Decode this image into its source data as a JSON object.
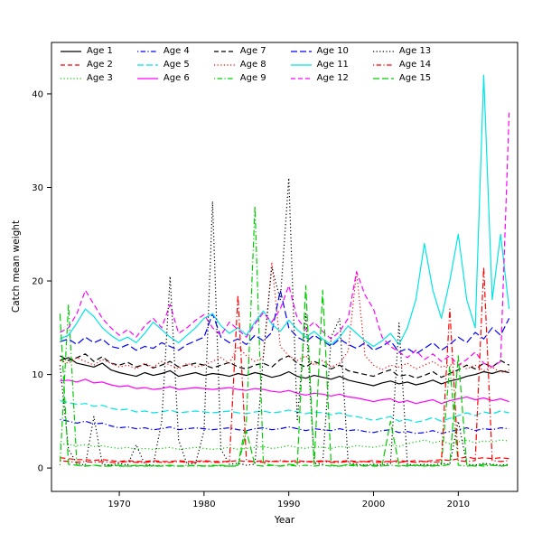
{
  "figure": {
    "background": "#ffffff",
    "x_ticks": [
      1970,
      1980,
      1990,
      2000,
      2010
    ],
    "y_ticks": [
      0,
      10,
      20,
      30,
      40
    ]
  },
  "chart_data": {
    "type": "line",
    "title": "",
    "xlabel": "Year",
    "ylabel": "Catch mean weight",
    "xlim": [
      1963,
      2016
    ],
    "ylim": [
      0,
      42
    ],
    "grid": false,
    "legend": {
      "position": "top",
      "columns": 5,
      "order": "column-major"
    },
    "x": [
      1963,
      1964,
      1965,
      1966,
      1967,
      1968,
      1969,
      1970,
      1971,
      1972,
      1973,
      1974,
      1975,
      1976,
      1977,
      1978,
      1979,
      1980,
      1981,
      1982,
      1983,
      1984,
      1985,
      1986,
      1987,
      1988,
      1989,
      1990,
      1991,
      1992,
      1993,
      1994,
      1995,
      1996,
      1997,
      1998,
      1999,
      2000,
      2001,
      2002,
      2003,
      2004,
      2005,
      2006,
      2007,
      2008,
      2009,
      2010,
      2011,
      2012,
      2013,
      2014,
      2015,
      2016
    ],
    "series": [
      {
        "name": "Age 1",
        "color": "#000000",
        "style": "solid",
        "values": [
          11.5,
          11.8,
          11.2,
          11.0,
          10.8,
          11.2,
          10.5,
          10.2,
          10.0,
          9.8,
          10.2,
          9.9,
          10.1,
          10.4,
          9.8,
          10.0,
          10.2,
          9.9,
          10.1,
          10.0,
          9.8,
          10.1,
          9.9,
          10.2,
          10.0,
          9.7,
          9.9,
          10.3,
          9.8,
          9.6,
          9.9,
          9.7,
          9.5,
          9.8,
          9.4,
          9.2,
          9.0,
          8.8,
          9.1,
          9.3,
          9.0,
          9.2,
          8.9,
          9.1,
          9.4,
          9.0,
          9.3,
          9.5,
          9.8,
          10.0,
          10.3,
          10.1,
          10.4,
          10.2
        ]
      },
      {
        "name": "Age 2",
        "color": "#ff0000",
        "style": "dashed",
        "values": [
          1.1,
          1.0,
          0.9,
          0.9,
          0.8,
          0.9,
          0.8,
          0.7,
          0.8,
          0.7,
          0.7,
          0.8,
          0.7,
          0.7,
          0.8,
          0.7,
          0.7,
          0.8,
          0.7,
          0.7,
          0.7,
          0.8,
          0.7,
          0.7,
          0.8,
          0.7,
          0.7,
          0.7,
          0.8,
          0.7,
          0.7,
          0.8,
          0.7,
          0.7,
          0.8,
          0.7,
          0.7,
          0.8,
          0.7,
          0.7,
          0.8,
          0.7,
          0.8,
          0.7,
          0.8,
          0.9,
          0.8,
          1.0,
          1.2,
          1.0,
          1.1,
          1.0,
          1.1,
          1.0
        ]
      },
      {
        "name": "Age 3",
        "color": "#00cd00",
        "style": "dotted",
        "values": [
          2.6,
          2.5,
          2.4,
          2.5,
          2.3,
          2.4,
          2.2,
          2.1,
          2.2,
          2.0,
          2.1,
          2.0,
          2.1,
          2.2,
          2.0,
          2.1,
          2.2,
          2.1,
          2.0,
          2.1,
          2.2,
          2.0,
          2.1,
          2.2,
          2.3,
          2.1,
          2.2,
          2.4,
          2.2,
          2.1,
          2.3,
          2.2,
          2.1,
          2.3,
          2.2,
          2.4,
          2.3,
          2.2,
          2.4,
          2.5,
          2.3,
          2.6,
          2.8,
          3.0,
          2.7,
          2.9,
          2.6,
          2.8,
          3.0,
          2.7,
          2.9,
          2.8,
          3.0,
          2.9
        ]
      },
      {
        "name": "Age 4",
        "color": "#0000ff",
        "style": "dashdot",
        "values": [
          5.2,
          5.0,
          4.8,
          5.0,
          4.7,
          4.8,
          4.5,
          4.3,
          4.4,
          4.2,
          4.3,
          4.1,
          4.2,
          4.4,
          4.1,
          4.2,
          4.3,
          4.2,
          4.1,
          4.2,
          4.3,
          4.1,
          4.0,
          4.2,
          4.3,
          4.1,
          4.2,
          4.4,
          4.2,
          4.0,
          4.2,
          4.1,
          4.0,
          4.2,
          4.0,
          4.1,
          3.9,
          3.8,
          4.0,
          4.1,
          3.8,
          3.9,
          3.7,
          3.8,
          4.0,
          3.7,
          3.9,
          4.1,
          4.3,
          4.0,
          4.2,
          4.1,
          4.3,
          4.2
        ]
      },
      {
        "name": "Age 5",
        "color": "#00e5e5",
        "style": "longdash",
        "values": [
          7.2,
          7.0,
          6.8,
          6.9,
          6.6,
          6.7,
          6.4,
          6.2,
          6.3,
          6.0,
          6.1,
          5.9,
          6.0,
          6.2,
          5.9,
          6.0,
          6.1,
          6.0,
          5.9,
          6.0,
          6.1,
          5.9,
          5.8,
          6.0,
          6.1,
          5.9,
          6.0,
          6.2,
          6.0,
          5.8,
          6.0,
          5.9,
          5.7,
          5.9,
          5.6,
          5.5,
          5.3,
          5.1,
          5.3,
          5.5,
          5.0,
          5.2,
          4.9,
          5.1,
          5.4,
          5.0,
          5.3,
          5.6,
          5.9,
          5.6,
          6.0,
          5.8,
          6.1,
          5.9
        ]
      },
      {
        "name": "Age 6",
        "color": "#ff00ff",
        "style": "solid",
        "values": [
          9.3,
          9.4,
          9.2,
          9.5,
          9.1,
          9.2,
          8.9,
          8.7,
          8.8,
          8.5,
          8.6,
          8.4,
          8.5,
          8.7,
          8.4,
          8.5,
          8.6,
          8.5,
          8.4,
          8.5,
          8.6,
          8.4,
          8.3,
          8.5,
          8.4,
          8.2,
          8.1,
          8.3,
          8.0,
          7.8,
          8.0,
          7.9,
          7.7,
          7.9,
          7.6,
          7.5,
          7.3,
          7.1,
          7.3,
          7.4,
          7.0,
          7.2,
          6.9,
          7.1,
          7.3,
          6.9,
          7.2,
          7.4,
          7.6,
          7.3,
          7.5,
          7.2,
          7.4,
          7.1
        ]
      },
      {
        "name": "Age 7",
        "color": "#000000",
        "style": "dashed",
        "values": [
          12.0,
          11.5,
          11.8,
          12.2,
          11.4,
          11.9,
          11.2,
          11.0,
          11.3,
          10.8,
          11.1,
          10.7,
          11.0,
          11.4,
          10.8,
          11.0,
          11.2,
          11.0,
          10.7,
          11.0,
          11.3,
          10.8,
          10.6,
          11.0,
          11.2,
          10.8,
          11.6,
          12.0,
          11.2,
          10.8,
          11.4,
          11.0,
          10.6,
          11.0,
          10.4,
          10.2,
          10.0,
          9.8,
          10.2,
          10.5,
          9.8,
          10.0,
          9.6,
          9.9,
          10.3,
          9.7,
          10.1,
          10.5,
          11.0,
          10.6,
          11.2,
          10.8,
          11.5,
          11.0
        ]
      },
      {
        "name": "Age 8",
        "color": "#ff0000",
        "style": "dotted",
        "values": [
          11.5,
          11.2,
          11.8,
          11.4,
          11.0,
          11.6,
          11.2,
          10.8,
          11.0,
          10.6,
          11.2,
          10.8,
          11.4,
          11.0,
          10.6,
          11.2,
          10.8,
          11.0,
          11.4,
          11.8,
          11.2,
          13.0,
          12.0,
          11.4,
          11.8,
          22.0,
          13.0,
          12.0,
          11.5,
          12.0,
          11.0,
          11.5,
          10.8,
          11.2,
          12.5,
          21.0,
          12.0,
          11.0,
          10.5,
          11.0,
          10.8,
          11.2,
          10.6,
          11.0,
          11.4,
          10.8,
          11.0,
          11.2,
          10.6,
          11.0,
          10.4,
          10.8,
          10.2,
          10.5
        ]
      },
      {
        "name": "Age 9",
        "color": "#00cd00",
        "style": "dashdot",
        "values": [
          0.3,
          17.5,
          0.3,
          0.2,
          0.3,
          0.2,
          0.3,
          0.2,
          0.2,
          0.3,
          0.2,
          0.2,
          0.3,
          0.2,
          0.2,
          0.3,
          0.2,
          0.2,
          0.3,
          0.2,
          0.2,
          0.3,
          5.0,
          28.0,
          0.5,
          0.3,
          0.2,
          0.3,
          0.2,
          0.3,
          0.2,
          0.3,
          0.2,
          0.2,
          0.3,
          0.2,
          0.3,
          0.2,
          0.2,
          0.3,
          0.2,
          0.3,
          0.2,
          0.3,
          0.2,
          0.3,
          11.0,
          0.3,
          0.2,
          0.3,
          0.2,
          0.3,
          0.2,
          0.3
        ]
      },
      {
        "name": "Age 10",
        "color": "#0000ff",
        "style": "longdash",
        "values": [
          13.5,
          13.8,
          13.2,
          14.0,
          13.4,
          13.8,
          13.0,
          12.8,
          13.2,
          12.6,
          13.0,
          12.8,
          13.4,
          13.0,
          12.6,
          13.2,
          13.6,
          14.0,
          16.5,
          14.0,
          13.4,
          13.8,
          13.2,
          14.2,
          13.6,
          14.5,
          19.0,
          15.0,
          14.0,
          13.5,
          14.2,
          13.6,
          13.0,
          13.8,
          13.2,
          12.8,
          13.4,
          12.6,
          13.0,
          13.6,
          12.4,
          12.8,
          12.2,
          12.8,
          13.4,
          12.6,
          13.2,
          14.0,
          13.4,
          14.5,
          13.8,
          15.0,
          14.2,
          16.0
        ]
      },
      {
        "name": "Age 11",
        "color": "#00e5e5",
        "style": "solid",
        "values": [
          13.8,
          14.2,
          15.5,
          17.0,
          16.2,
          15.0,
          14.2,
          13.6,
          14.0,
          13.4,
          14.4,
          15.6,
          14.8,
          14.0,
          13.4,
          14.2,
          15.0,
          16.0,
          16.5,
          15.2,
          14.4,
          15.0,
          14.2,
          15.6,
          16.8,
          15.4,
          14.6,
          15.8,
          14.8,
          14.0,
          14.6,
          13.8,
          13.2,
          14.0,
          15.2,
          14.4,
          13.6,
          13.0,
          13.6,
          14.4,
          13.2,
          15.0,
          18.0,
          24.0,
          19.0,
          16.0,
          20.0,
          25.0,
          18.0,
          15.0,
          42.0,
          18.0,
          25.0,
          17.0
        ]
      },
      {
        "name": "Age 12",
        "color": "#ff00ff",
        "style": "dashed",
        "values": [
          14.5,
          15.0,
          16.5,
          19.0,
          17.5,
          16.0,
          15.0,
          14.2,
          14.8,
          14.0,
          15.2,
          16.0,
          15.0,
          17.5,
          14.4,
          15.0,
          15.8,
          16.4,
          15.0,
          14.2,
          15.6,
          14.8,
          14.0,
          15.4,
          16.6,
          15.6,
          17.0,
          19.5,
          16.0,
          14.8,
          15.6,
          14.6,
          13.8,
          14.6,
          16.0,
          21.0,
          18.5,
          17.0,
          14.0,
          13.0,
          12.4,
          11.8,
          12.6,
          11.6,
          12.2,
          11.4,
          12.0,
          11.0,
          11.6,
          12.4,
          11.2,
          10.8,
          11.4,
          38.0
        ]
      },
      {
        "name": "Age 13",
        "color": "#000000",
        "style": "dotted",
        "values": [
          11.0,
          2.0,
          0.5,
          0.3,
          5.5,
          0.4,
          0.3,
          0.5,
          0.3,
          2.5,
          0.4,
          0.3,
          5.0,
          20.5,
          3.0,
          0.4,
          0.5,
          4.0,
          28.5,
          2.0,
          0.4,
          0.5,
          0.3,
          0.4,
          12.0,
          21.5,
          18.0,
          31.0,
          5.0,
          16.5,
          0.5,
          0.4,
          14.0,
          16.0,
          0.5,
          0.4,
          0.3,
          0.4,
          0.3,
          0.5,
          15.5,
          0.4,
          0.3,
          0.4,
          0.3,
          0.5,
          0.4,
          5.0,
          0.4,
          0.3,
          0.5,
          0.4,
          0.3,
          0.4
        ]
      },
      {
        "name": "Age 14",
        "color": "#ff0000",
        "style": "dashdot",
        "values": [
          0.8,
          0.7,
          0.6,
          0.7,
          0.6,
          0.7,
          0.6,
          0.6,
          0.7,
          0.6,
          0.6,
          0.7,
          0.6,
          0.6,
          0.7,
          0.6,
          0.6,
          0.7,
          0.6,
          0.6,
          0.7,
          18.5,
          0.8,
          0.7,
          0.6,
          0.7,
          0.8,
          0.7,
          0.6,
          0.7,
          0.6,
          0.7,
          0.6,
          0.6,
          0.7,
          0.6,
          0.7,
          0.6,
          0.6,
          0.7,
          0.6,
          0.7,
          0.6,
          0.7,
          0.6,
          0.7,
          17.0,
          0.8,
          0.7,
          0.8,
          21.5,
          0.8,
          0.7,
          0.8
        ]
      },
      {
        "name": "Age 15",
        "color": "#00cd00",
        "style": "longdash",
        "values": [
          16.5,
          0.4,
          0.3,
          0.2,
          0.3,
          0.2,
          0.2,
          0.3,
          0.2,
          0.2,
          0.3,
          0.2,
          0.2,
          0.3,
          0.2,
          0.2,
          0.3,
          0.2,
          0.2,
          0.3,
          0.2,
          0.2,
          4.0,
          0.3,
          0.2,
          0.3,
          0.2,
          0.4,
          0.3,
          19.5,
          0.4,
          19.0,
          0.3,
          0.2,
          0.4,
          0.3,
          0.2,
          0.3,
          0.2,
          5.0,
          0.3,
          0.2,
          0.3,
          0.2,
          0.3,
          0.2,
          0.4,
          12.0,
          0.3,
          0.2,
          0.4,
          0.3,
          0.2,
          0.3
        ]
      }
    ]
  }
}
